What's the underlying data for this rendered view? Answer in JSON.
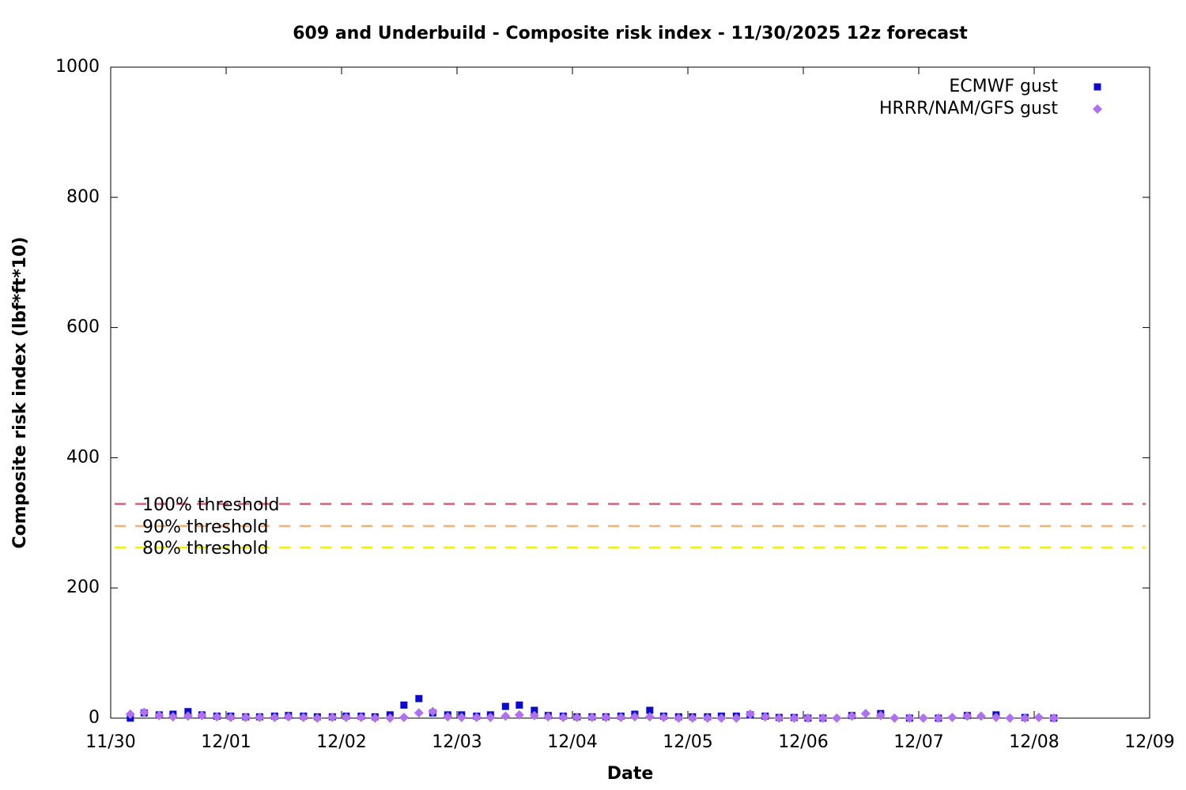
{
  "chart_data": {
    "type": "scatter",
    "title": "609 and Underbuild - Composite risk index - 11/30/2025 12z forecast",
    "x_label": "Date",
    "y_label": "Composite risk index (lbf*ft*10)",
    "xlim": [
      0,
      9
    ],
    "xticks": [
      {
        "value": 0,
        "label": "11/30"
      },
      {
        "value": 1,
        "label": "12/01"
      },
      {
        "value": 2,
        "label": "12/02"
      },
      {
        "value": 3,
        "label": "12/03"
      },
      {
        "value": 4,
        "label": "12/04"
      },
      {
        "value": 5,
        "label": "12/05"
      },
      {
        "value": 6,
        "label": "12/06"
      },
      {
        "value": 7,
        "label": "12/07"
      },
      {
        "value": 8,
        "label": "12/08"
      },
      {
        "value": 9,
        "label": "12/09"
      }
    ],
    "ylim": [
      0,
      1000
    ],
    "yticks": [
      0,
      200,
      400,
      600,
      800,
      1000
    ],
    "legend": "top-right",
    "thresholds": [
      {
        "name": "100% threshold",
        "value": 329,
        "color": "#d9607a"
      },
      {
        "name": "90% threshold",
        "value": 295,
        "color": "#f5b07a"
      },
      {
        "name": "80% threshold",
        "value": 262,
        "color": "#f0f000"
      }
    ],
    "series": [
      {
        "name": "ECMWF gust",
        "color": "#0a0ad0",
        "marker": "square",
        "x": [
          0.17,
          0.29,
          0.42,
          0.54,
          0.67,
          0.79,
          0.92,
          1.04,
          1.17,
          1.29,
          1.42,
          1.54,
          1.67,
          1.79,
          1.92,
          2.04,
          2.17,
          2.29,
          2.42,
          2.54,
          2.67,
          2.79,
          2.92,
          3.04,
          3.17,
          3.29,
          3.42,
          3.54,
          3.67,
          3.79,
          3.92,
          4.04,
          4.17,
          4.29,
          4.42,
          4.54,
          4.67,
          4.79,
          4.92,
          5.04,
          5.17,
          5.29,
          5.42,
          5.54,
          5.67,
          5.79,
          5.92,
          6.04,
          6.17,
          6.42,
          6.67,
          6.92,
          7.17,
          7.42,
          7.67,
          7.92,
          8.17
        ],
        "values": [
          0,
          8,
          5,
          6,
          10,
          5,
          3,
          3,
          2,
          2,
          3,
          4,
          3,
          2,
          2,
          3,
          3,
          2,
          5,
          20,
          30,
          8,
          5,
          5,
          3,
          5,
          18,
          20,
          12,
          4,
          3,
          2,
          2,
          2,
          3,
          6,
          12,
          3,
          2,
          2,
          2,
          3,
          3,
          5,
          3,
          1,
          1,
          0,
          0,
          4,
          7,
          0,
          0,
          4,
          5,
          1,
          0
        ]
      },
      {
        "name": "HRRR/NAM/GFS gust",
        "color": "#b070f0",
        "marker": "diamond",
        "x": [
          0.17,
          0.29,
          0.42,
          0.54,
          0.67,
          0.79,
          0.92,
          1.04,
          1.17,
          1.29,
          1.42,
          1.54,
          1.67,
          1.79,
          1.92,
          2.04,
          2.17,
          2.29,
          2.42,
          2.54,
          2.67,
          2.79,
          2.92,
          3.04,
          3.17,
          3.29,
          3.42,
          3.54,
          3.67,
          3.79,
          3.92,
          4.04,
          4.17,
          4.29,
          4.42,
          4.54,
          4.67,
          4.79,
          4.92,
          5.04,
          5.17,
          5.29,
          5.42,
          5.54,
          5.67,
          5.79,
          5.92,
          6.04,
          6.17,
          6.29,
          6.42,
          6.54,
          6.67,
          6.79,
          6.92,
          7.04,
          7.17,
          7.29,
          7.42,
          7.54,
          7.67,
          7.79,
          7.92,
          8.04,
          8.17
        ],
        "values": [
          6,
          9,
          4,
          2,
          3,
          4,
          2,
          1,
          1,
          1,
          1,
          2,
          1,
          0,
          1,
          1,
          1,
          0,
          0,
          1,
          8,
          10,
          2,
          1,
          1,
          1,
          3,
          5,
          4,
          2,
          1,
          1,
          1,
          1,
          1,
          2,
          2,
          1,
          0,
          0,
          0,
          0,
          0,
          6,
          2,
          0,
          0,
          0,
          0,
          0,
          3,
          7,
          4,
          0,
          0,
          0,
          0,
          1,
          3,
          3,
          1,
          0,
          0,
          1,
          0
        ]
      }
    ]
  }
}
